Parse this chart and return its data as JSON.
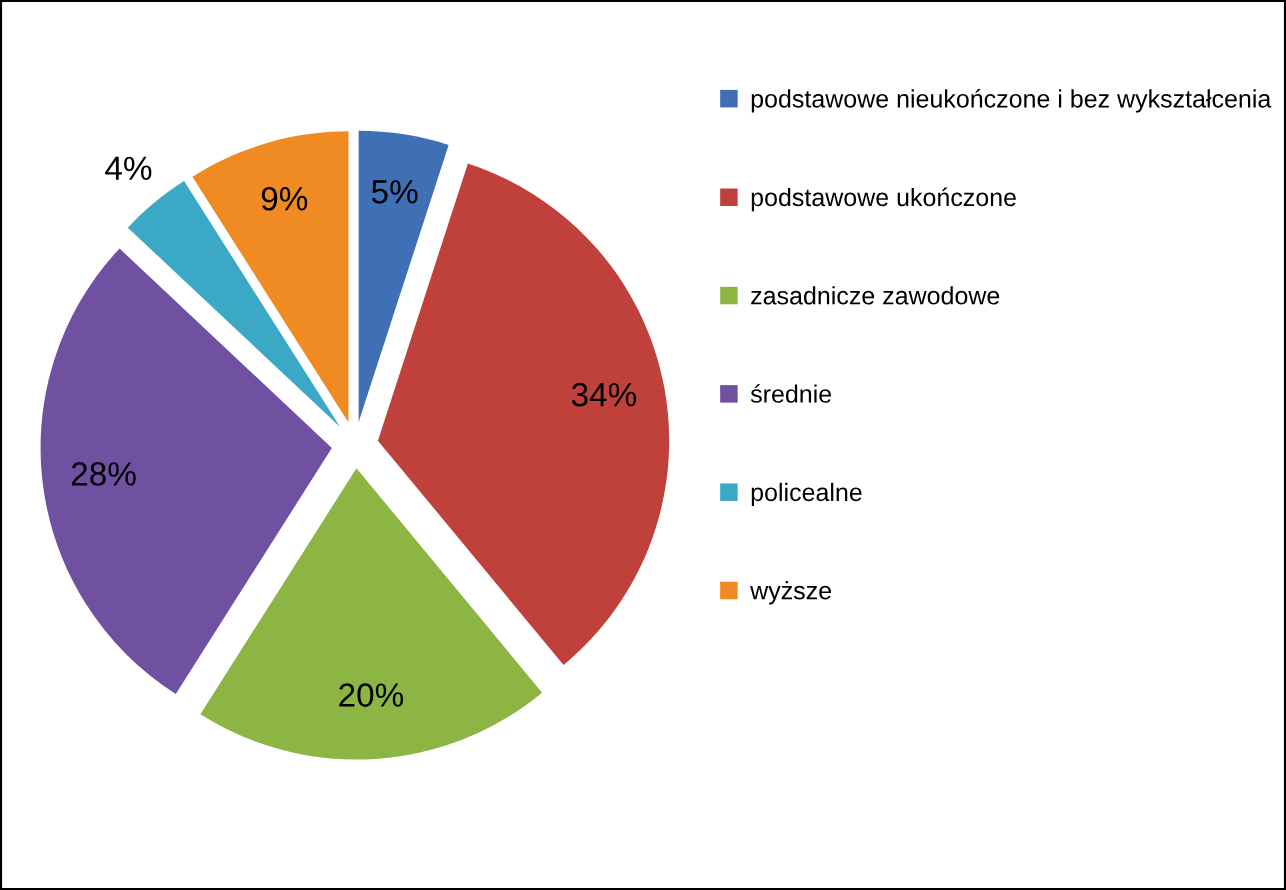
{
  "chart_data": {
    "type": "pie",
    "categories": [
      "podstawowe nieukończone i bez wykształcenia",
      "podstawowe ukończone",
      "zasadnicze zawodowe",
      "średnie",
      "policealne",
      "wyższe"
    ],
    "values": [
      5,
      34,
      20,
      28,
      4,
      9
    ],
    "colors": [
      "#3f6fb5",
      "#c0403c",
      "#8db544",
      "#7050a0",
      "#3ba8c6",
      "#f08a22"
    ],
    "value_labels": [
      "5%",
      "34%",
      "20%",
      "28%",
      "4%",
      "9%"
    ],
    "legend": "right"
  }
}
